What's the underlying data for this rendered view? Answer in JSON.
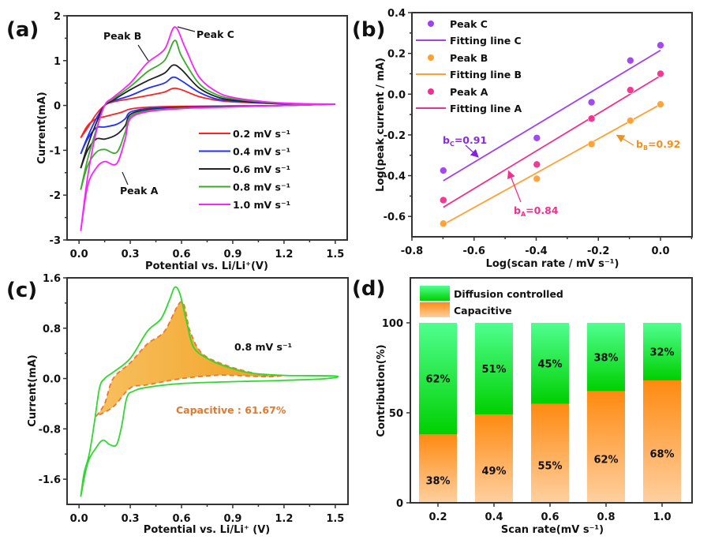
{
  "chart_data": [
    {
      "panel": "(a)",
      "type": "line",
      "title": "",
      "xlabel": "Potential vs. Li/Li⁺(V)",
      "ylabel": "Current(mA)",
      "xlim": [
        -0.07,
        1.57
      ],
      "ylim": [
        -3,
        2
      ],
      "xticks": [
        "0.0",
        "0.3",
        "0.6",
        "0.9",
        "1.2",
        "1.5"
      ],
      "xtick_values": [
        0.0,
        0.3,
        0.6,
        0.9,
        1.2,
        1.5
      ],
      "yticks": [
        "2",
        "1",
        "0",
        "-1",
        "-2",
        "-3"
      ],
      "ytick_values": [
        2,
        1,
        0,
        -1,
        -2,
        -3
      ],
      "legend": "center-right",
      "annotations": [
        {
          "text": "Peak A",
          "x": 0.2,
          "y": -1.3
        },
        {
          "text": "Peak B",
          "x": 0.4,
          "y": 0.95
        },
        {
          "text": "Peak C",
          "x": 0.56,
          "y": 1.75
        }
      ],
      "series": [
        {
          "name": "0.2 mV s⁻¹",
          "color": "#ff2020",
          "anodic": [
            [
              0.01,
              -0.72
            ],
            [
              0.05,
              -0.5
            ],
            [
              0.1,
              -0.2
            ],
            [
              0.15,
              0.0
            ],
            [
              0.2,
              0.08
            ],
            [
              0.3,
              0.15
            ],
            [
              0.4,
              0.22
            ],
            [
              0.5,
              0.3
            ],
            [
              0.55,
              0.38
            ],
            [
              0.6,
              0.35
            ],
            [
              0.7,
              0.2
            ],
            [
              0.8,
              0.12
            ],
            [
              0.9,
              0.08
            ],
            [
              1.1,
              0.05
            ],
            [
              1.3,
              0.03
            ],
            [
              1.5,
              0.03
            ]
          ],
          "cathodic": [
            [
              1.5,
              0.03
            ],
            [
              1.2,
              0.0
            ],
            [
              0.9,
              -0.01
            ],
            [
              0.6,
              -0.02
            ],
            [
              0.4,
              -0.04
            ],
            [
              0.3,
              -0.08
            ],
            [
              0.25,
              -0.15
            ],
            [
              0.2,
              -0.2
            ],
            [
              0.15,
              -0.25
            ],
            [
              0.1,
              -0.3
            ],
            [
              0.05,
              -0.45
            ],
            [
              0.01,
              -0.72
            ]
          ]
        },
        {
          "name": "0.4 mV s⁻¹",
          "color": "#2030ff",
          "anodic": [
            [
              0.01,
              -1.08
            ],
            [
              0.05,
              -0.7
            ],
            [
              0.1,
              -0.3
            ],
            [
              0.15,
              0.0
            ],
            [
              0.2,
              0.1
            ],
            [
              0.3,
              0.22
            ],
            [
              0.4,
              0.38
            ],
            [
              0.5,
              0.5
            ],
            [
              0.55,
              0.63
            ],
            [
              0.6,
              0.55
            ],
            [
              0.7,
              0.3
            ],
            [
              0.8,
              0.15
            ],
            [
              0.9,
              0.1
            ],
            [
              1.1,
              0.05
            ],
            [
              1.3,
              0.03
            ],
            [
              1.5,
              0.03
            ]
          ],
          "cathodic": [
            [
              1.5,
              0.03
            ],
            [
              1.2,
              0.0
            ],
            [
              0.9,
              -0.02
            ],
            [
              0.6,
              -0.04
            ],
            [
              0.4,
              -0.07
            ],
            [
              0.3,
              -0.15
            ],
            [
              0.27,
              -0.3
            ],
            [
              0.22,
              -0.42
            ],
            [
              0.15,
              -0.48
            ],
            [
              0.1,
              -0.5
            ],
            [
              0.05,
              -0.75
            ],
            [
              0.01,
              -1.08
            ]
          ]
        },
        {
          "name": "0.6 mV s⁻¹",
          "color": "#222222",
          "anodic": [
            [
              0.01,
              -1.4
            ],
            [
              0.05,
              -0.9
            ],
            [
              0.1,
              -0.4
            ],
            [
              0.15,
              0.0
            ],
            [
              0.2,
              0.12
            ],
            [
              0.3,
              0.35
            ],
            [
              0.4,
              0.55
            ],
            [
              0.5,
              0.72
            ],
            [
              0.55,
              0.9
            ],
            [
              0.6,
              0.8
            ],
            [
              0.7,
              0.4
            ],
            [
              0.8,
              0.2
            ],
            [
              0.9,
              0.12
            ],
            [
              1.1,
              0.06
            ],
            [
              1.3,
              0.03
            ],
            [
              1.5,
              0.03
            ]
          ],
          "cathodic": [
            [
              1.5,
              0.03
            ],
            [
              1.2,
              0.0
            ],
            [
              0.9,
              -0.02
            ],
            [
              0.6,
              -0.05
            ],
            [
              0.4,
              -0.1
            ],
            [
              0.3,
              -0.2
            ],
            [
              0.27,
              -0.45
            ],
            [
              0.22,
              -0.65
            ],
            [
              0.15,
              -0.75
            ],
            [
              0.1,
              -0.75
            ],
            [
              0.05,
              -1.0
            ],
            [
              0.01,
              -1.4
            ]
          ]
        },
        {
          "name": "0.8 mV s⁻¹",
          "color": "#3aaa2a",
          "anodic": [
            [
              0.01,
              -1.88
            ],
            [
              0.05,
              -1.2
            ],
            [
              0.1,
              -0.55
            ],
            [
              0.15,
              0.0
            ],
            [
              0.2,
              0.15
            ],
            [
              0.3,
              0.42
            ],
            [
              0.4,
              0.75
            ],
            [
              0.5,
              1.0
            ],
            [
              0.56,
              1.45
            ],
            [
              0.6,
              1.1
            ],
            [
              0.7,
              0.5
            ],
            [
              0.8,
              0.25
            ],
            [
              0.9,
              0.15
            ],
            [
              1.1,
              0.07
            ],
            [
              1.3,
              0.03
            ],
            [
              1.5,
              0.03
            ]
          ],
          "cathodic": [
            [
              1.5,
              0.03
            ],
            [
              1.2,
              0.0
            ],
            [
              0.9,
              -0.03
            ],
            [
              0.6,
              -0.06
            ],
            [
              0.4,
              -0.12
            ],
            [
              0.3,
              -0.25
            ],
            [
              0.27,
              -0.6
            ],
            [
              0.22,
              -1.05
            ],
            [
              0.15,
              -0.98
            ],
            [
              0.1,
              -1.05
            ],
            [
              0.05,
              -1.35
            ],
            [
              0.01,
              -1.88
            ]
          ]
        },
        {
          "name": "1.0 mV s⁻¹",
          "color": "#ff20ff",
          "anodic": [
            [
              0.01,
              -2.8
            ],
            [
              0.05,
              -1.6
            ],
            [
              0.1,
              -0.6
            ],
            [
              0.15,
              0.0
            ],
            [
              0.2,
              0.18
            ],
            [
              0.3,
              0.5
            ],
            [
              0.4,
              0.95
            ],
            [
              0.5,
              1.25
            ],
            [
              0.56,
              1.75
            ],
            [
              0.62,
              1.3
            ],
            [
              0.7,
              0.65
            ],
            [
              0.8,
              0.32
            ],
            [
              0.9,
              0.18
            ],
            [
              1.1,
              0.08
            ],
            [
              1.3,
              0.04
            ],
            [
              1.5,
              0.03
            ]
          ],
          "cathodic": [
            [
              1.5,
              0.03
            ],
            [
              1.2,
              0.0
            ],
            [
              0.9,
              -0.03
            ],
            [
              0.6,
              -0.07
            ],
            [
              0.4,
              -0.14
            ],
            [
              0.3,
              -0.3
            ],
            [
              0.27,
              -0.75
            ],
            [
              0.22,
              -1.3
            ],
            [
              0.15,
              -1.25
            ],
            [
              0.1,
              -1.4
            ],
            [
              0.05,
              -1.8
            ],
            [
              0.01,
              -2.8
            ]
          ]
        }
      ]
    },
    {
      "panel": "(b)",
      "type": "scatter",
      "title": "",
      "xlabel": "Log(scan rate / mV s⁻¹)",
      "ylabel": "Log(peak current / mA)",
      "xlim": [
        -0.8,
        0.1
      ],
      "ylim": [
        -0.7,
        0.4
      ],
      "xticks": [
        "-0.8",
        "-0.6",
        "-0.4",
        "-0.2",
        "0.0"
      ],
      "xtick_values": [
        -0.8,
        -0.6,
        -0.4,
        -0.2,
        0.0
      ],
      "yticks": [
        "0.4",
        "0.2",
        "0.0",
        "-0.2",
        "-0.4",
        "-0.6"
      ],
      "ytick_values": [
        0.4,
        0.2,
        0.0,
        -0.2,
        -0.4,
        -0.6
      ],
      "legend": "top-left",
      "x": [
        -0.699,
        -0.398,
        -0.222,
        -0.097,
        0.0
      ],
      "series": [
        {
          "name": "Peak C",
          "fit_name": "Fitting line C",
          "color": "#a040f0",
          "values": [
            -0.375,
            -0.215,
            -0.04,
            0.165,
            0.24
          ],
          "fit": [
            [
              -0.699,
              -0.425
            ],
            [
              0.0,
              0.215
            ]
          ],
          "slope_label": "b",
          "slope_sub": "C",
          "slope_value": "=0.91"
        },
        {
          "name": "Peak B",
          "fit_name": "Fitting line B",
          "color": "#ffa030",
          "values": [
            -0.635,
            -0.415,
            -0.245,
            -0.13,
            -0.05
          ],
          "fit": [
            [
              -0.699,
              -0.64
            ],
            [
              0.0,
              -0.05
            ]
          ],
          "slope_label": "b",
          "slope_sub": "B",
          "slope_value": "=0.92"
        },
        {
          "name": "Peak A",
          "fit_name": "Fitting line A",
          "color": "#f03090",
          "values": [
            -0.52,
            -0.345,
            -0.12,
            0.02,
            0.1
          ],
          "fit": [
            [
              -0.699,
              -0.555
            ],
            [
              0.0,
              0.09
            ]
          ],
          "slope_label": "b",
          "slope_sub": "A",
          "slope_value": "=0.84"
        }
      ]
    },
    {
      "panel": "(c)",
      "type": "area",
      "title": "",
      "xlabel": "Potential vs. Li/Li⁺ (V)",
      "ylabel": "Current(mA)",
      "xlim": [
        -0.07,
        1.57
      ],
      "ylim": [
        -2.0,
        1.6
      ],
      "xticks": [
        "0.0",
        "0.3",
        "0.6",
        "0.9",
        "1.2",
        "1.5"
      ],
      "xtick_values": [
        0.0,
        0.3,
        0.6,
        0.9,
        1.2,
        1.5
      ],
      "yticks": [
        "1.6",
        "0.8",
        "0.0",
        "-0.8",
        "-1.6"
      ],
      "ytick_values": [
        1.6,
        0.8,
        0.0,
        -0.8,
        -1.6
      ],
      "scan_rate_label": "0.8 mV s⁻¹",
      "capacitive_label": "Capacitive : 61.67%",
      "capacitive_percent": 61.67,
      "cv_color": "#30d830",
      "capacitive_color": "#f5a830",
      "cv_curve": [
        [
          0.01,
          -1.88
        ],
        [
          0.03,
          -1.5
        ],
        [
          0.06,
          -1.2
        ],
        [
          0.09,
          -0.7
        ],
        [
          0.12,
          -0.15
        ],
        [
          0.15,
          0.0
        ],
        [
          0.2,
          0.1
        ],
        [
          0.3,
          0.32
        ],
        [
          0.4,
          0.75
        ],
        [
          0.48,
          0.95
        ],
        [
          0.53,
          1.25
        ],
        [
          0.56,
          1.45
        ],
        [
          0.59,
          1.35
        ],
        [
          0.63,
          0.9
        ],
        [
          0.67,
          0.5
        ],
        [
          0.75,
          0.32
        ],
        [
          0.85,
          0.2
        ],
        [
          1.0,
          0.09
        ],
        [
          1.2,
          0.05
        ],
        [
          1.5,
          0.04
        ],
        [
          1.45,
          0.0
        ],
        [
          1.2,
          -0.03
        ],
        [
          0.9,
          -0.05
        ],
        [
          0.6,
          -0.08
        ],
        [
          0.4,
          -0.14
        ],
        [
          0.32,
          -0.2
        ],
        [
          0.28,
          -0.3
        ],
        [
          0.25,
          -0.75
        ],
        [
          0.22,
          -1.05
        ],
        [
          0.18,
          -1.05
        ],
        [
          0.14,
          -0.98
        ],
        [
          0.1,
          -1.1
        ],
        [
          0.05,
          -1.35
        ],
        [
          0.01,
          -1.88
        ]
      ],
      "capacitive_curve": [
        [
          0.1,
          -0.6
        ],
        [
          0.15,
          -0.4
        ],
        [
          0.2,
          0.0
        ],
        [
          0.3,
          0.25
        ],
        [
          0.4,
          0.55
        ],
        [
          0.5,
          0.75
        ],
        [
          0.6,
          1.22
        ],
        [
          0.65,
          0.75
        ],
        [
          0.72,
          0.4
        ],
        [
          0.85,
          0.22
        ],
        [
          1.0,
          0.1
        ],
        [
          1.1,
          0.05
        ],
        [
          1.2,
          0.05
        ],
        [
          1.1,
          0.03
        ],
        [
          0.9,
          0.05
        ],
        [
          0.8,
          0.05
        ],
        [
          0.6,
          0.0
        ],
        [
          0.4,
          -0.1
        ],
        [
          0.3,
          -0.15
        ],
        [
          0.2,
          -0.45
        ],
        [
          0.1,
          -0.6
        ]
      ]
    },
    {
      "panel": "(d)",
      "type": "bar",
      "title": "",
      "xlabel": "Scan rate(mV s⁻¹)",
      "ylabel": "Contribution(%)",
      "ylim": [
        0,
        125
      ],
      "yticks": [
        "0",
        "50",
        "100"
      ],
      "ytick_values": [
        0,
        50,
        100
      ],
      "legend": "top-left",
      "categories": [
        "0.2",
        "0.4",
        "0.6",
        "0.8",
        "1.0"
      ],
      "series": [
        {
          "name": "Capacitive",
          "color_top": "#ff8a10",
          "color_bottom": "#ffd0a0",
          "values": [
            38,
            49,
            55,
            62,
            68
          ],
          "labels": [
            "38%",
            "49%",
            "55%",
            "62%",
            "68%"
          ]
        },
        {
          "name": "Diffusion controlled",
          "color_top": "#50ff90",
          "color_bottom": "#00d000",
          "values": [
            62,
            51,
            45,
            38,
            32
          ],
          "labels": [
            "62%",
            "51%",
            "45%",
            "38%",
            "32%"
          ]
        }
      ]
    }
  ]
}
